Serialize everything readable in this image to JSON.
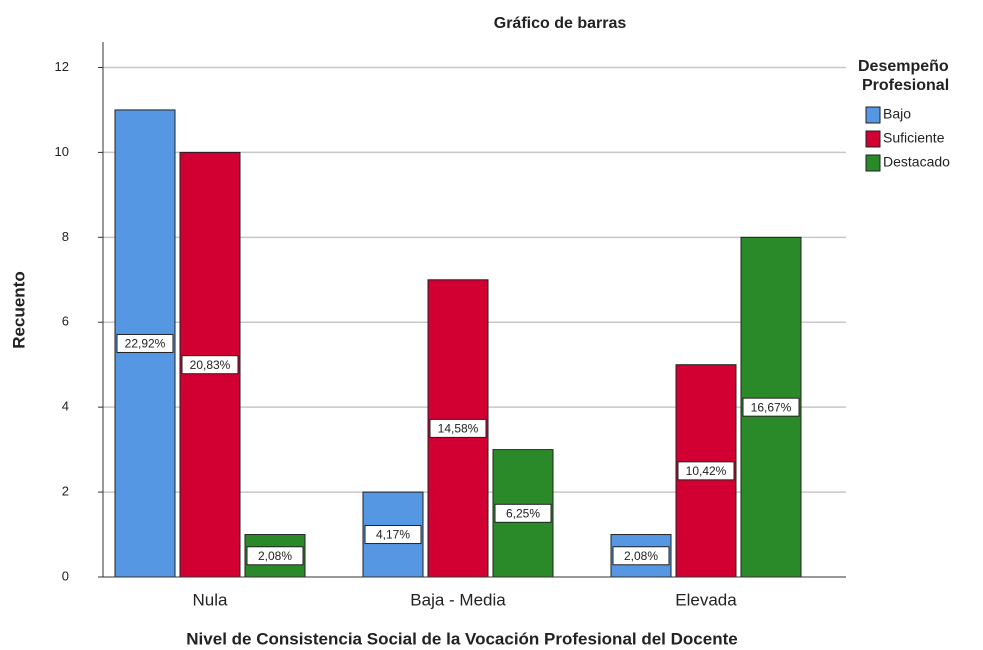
{
  "chart_data": {
    "type": "bar",
    "title": "Gráfico de barras",
    "x_label": "Nivel de Consistencia Social de la Vocación Profesional del Docente",
    "y_label": "Recuento",
    "legend_title": [
      "Desempeño",
      "Profesional"
    ],
    "categories": [
      "Nula",
      "Baja - Media",
      "Elevada"
    ],
    "series": [
      {
        "name": "Bajo",
        "color": "#5597e3",
        "values": [
          11,
          2,
          1
        ],
        "percent_labels": [
          "22,92%",
          "4,17%",
          "2,08%"
        ]
      },
      {
        "name": "Suficiente",
        "color": "#d20032",
        "values": [
          10,
          7,
          5
        ],
        "percent_labels": [
          "20,83%",
          "14,58%",
          "10,42%"
        ]
      },
      {
        "name": "Destacado",
        "color": "#2a8a2a",
        "values": [
          1,
          3,
          8
        ],
        "percent_labels": [
          "2,08%",
          "6,25%",
          "16,67%"
        ]
      }
    ],
    "ylim": [
      0,
      12.6
    ],
    "yticks": [
      0,
      2,
      4,
      6,
      8,
      10,
      12
    ],
    "grid": true,
    "legend": "right"
  }
}
